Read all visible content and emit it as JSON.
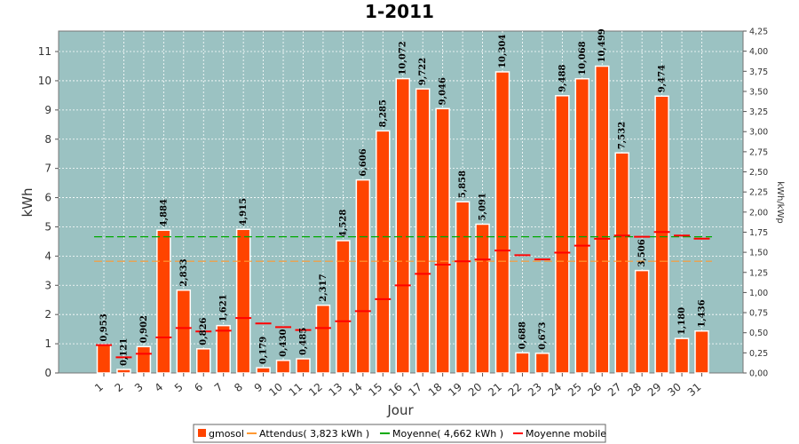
{
  "chart_data": {
    "type": "bar",
    "title": "1-2011",
    "xlabel": "Jour",
    "ylabel": "kWh",
    "y2label": "kWh/kWp",
    "ylim": [
      0,
      11.7
    ],
    "y2lim": [
      0,
      4.25
    ],
    "yticks": [
      "0",
      "1",
      "2",
      "3",
      "4",
      "5",
      "6",
      "7",
      "8",
      "9",
      "10",
      "11"
    ],
    "y2ticks": [
      "0,00",
      "0,25",
      "0,50",
      "0,75",
      "1,00",
      "1,25",
      "1,50",
      "1,75",
      "2,00",
      "2,25",
      "2,50",
      "2,75",
      "3,00",
      "3,25",
      "3,50",
      "3,75",
      "4,00",
      "4,25"
    ],
    "categories": [
      "1",
      "2",
      "3",
      "4",
      "5",
      "6",
      "7",
      "8",
      "9",
      "10",
      "11",
      "12",
      "13",
      "14",
      "15",
      "16",
      "17",
      "18",
      "19",
      "20",
      "21",
      "22",
      "23",
      "24",
      "25",
      "26",
      "27",
      "28",
      "29",
      "30",
      "31"
    ],
    "series": [
      {
        "name": "gmosol",
        "kind": "bar",
        "color": "#ff4400",
        "values": [
          0.953,
          0.121,
          0.902,
          4.884,
          2.833,
          0.826,
          1.621,
          4.915,
          0.179,
          0.43,
          0.485,
          2.317,
          4.528,
          6.606,
          8.285,
          10.072,
          9.722,
          9.046,
          5.858,
          5.091,
          10.304,
          0.688,
          0.673,
          9.488,
          10.068,
          10.499,
          7.532,
          3.506,
          9.474,
          1.18,
          1.436
        ],
        "labels": [
          "0,953",
          "0,121",
          "0,902",
          "4,884",
          "2,833",
          "0,826",
          "1,621",
          "4,915",
          "0,179",
          "0,430",
          "0,485",
          "2,317",
          "4,528",
          "6,606",
          "8,285",
          "10,072",
          "9,722",
          "9,046",
          "5,858",
          "5,091",
          "10,304",
          "0,688",
          "0,673",
          "9,488",
          "10,068",
          "10,499",
          "7,532",
          "3,506",
          "9,474",
          "1,180",
          "1,436"
        ]
      },
      {
        "name": "Attendus( 3,823 kWh )",
        "kind": "hline",
        "color": "#ff9933",
        "value": 3.823
      },
      {
        "name": "Moyenne( 4,662 kWh )",
        "kind": "hline",
        "color": "#00aa00",
        "value": 4.662
      },
      {
        "name": "Moyenne mobile",
        "kind": "step",
        "color": "#ff0000",
        "values": [
          0.953,
          0.537,
          0.659,
          1.215,
          1.539,
          1.42,
          1.449,
          1.882,
          1.693,
          1.567,
          1.469,
          1.539,
          1.769,
          2.114,
          2.525,
          2.998,
          3.393,
          3.707,
          3.82,
          3.884,
          4.19,
          4.031,
          3.885,
          4.119,
          4.358,
          4.594,
          4.703,
          4.66,
          4.826,
          4.704,
          4.598
        ]
      }
    ],
    "legend": {
      "position": "bottom",
      "entries": [
        "gmosol",
        "Attendus( 3,823 kWh )",
        "Moyenne( 4,662 kWh )",
        "Moyenne mobile"
      ]
    },
    "grid": true
  }
}
